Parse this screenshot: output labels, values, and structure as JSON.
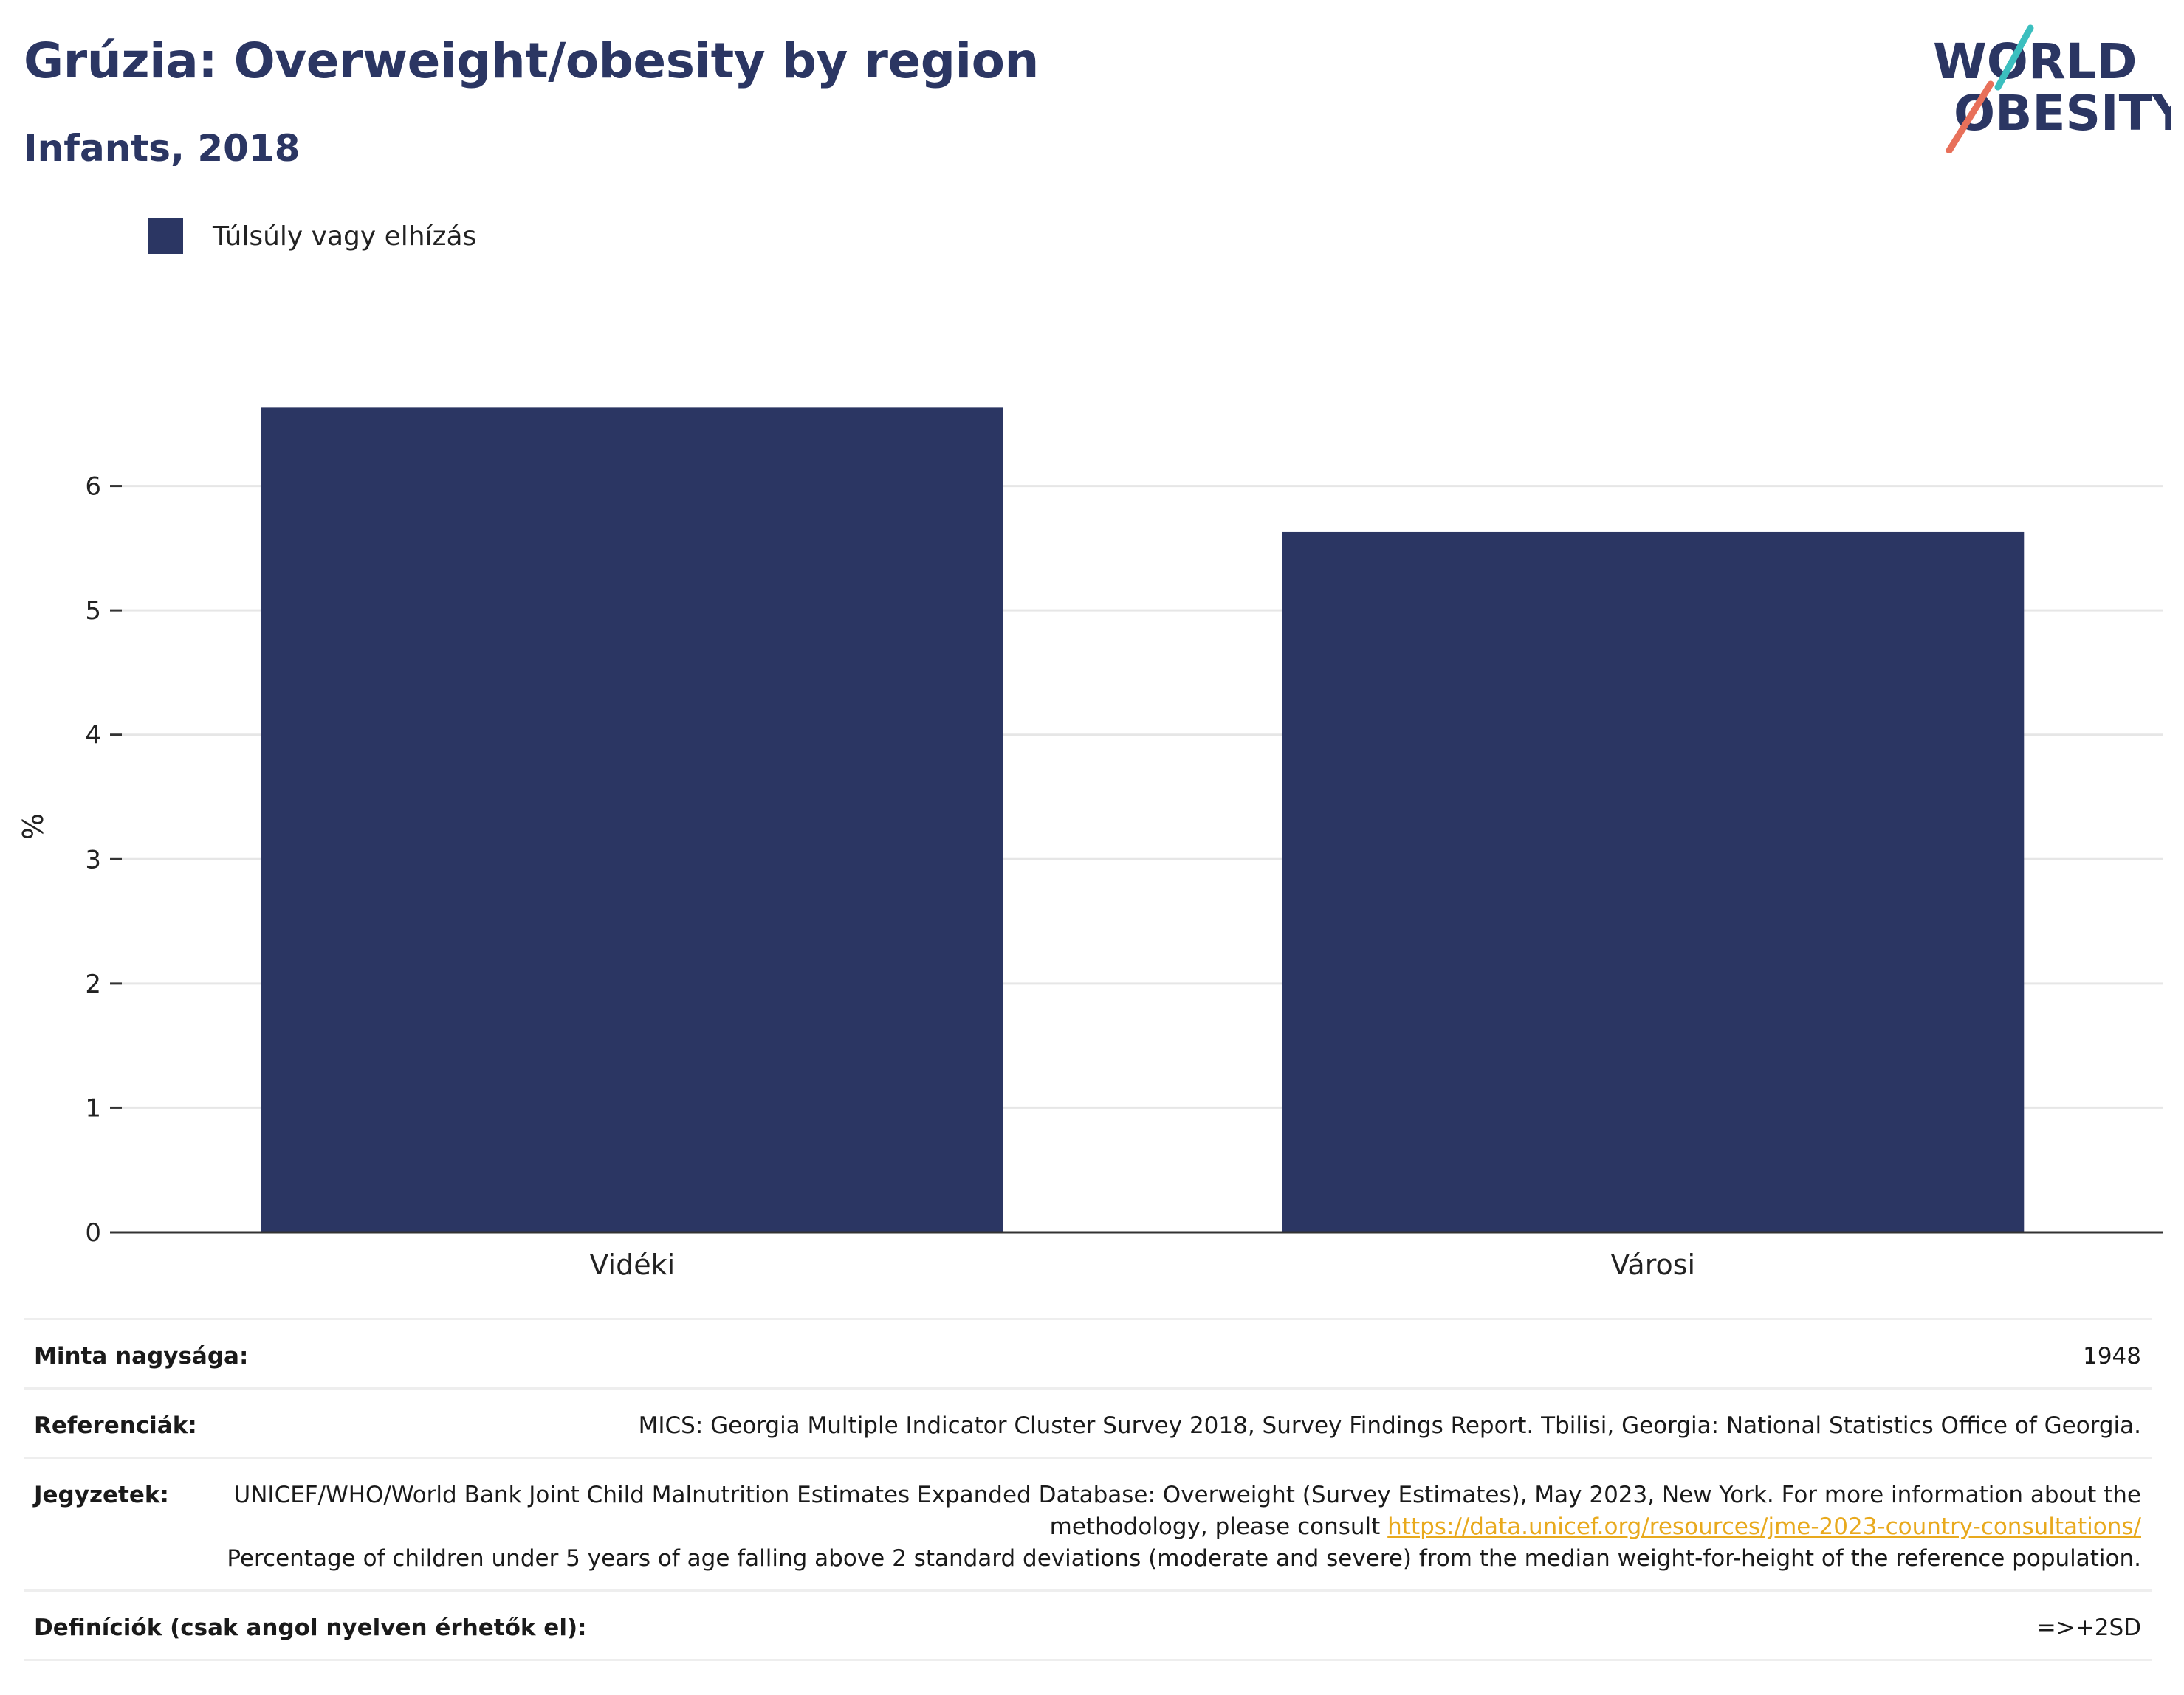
{
  "header": {
    "title": "Grúzia: Overweight/obesity by region",
    "subtitle": "Infants, 2018"
  },
  "logo": {
    "line1": "WORLD",
    "line2": "OBESITY",
    "name": "world-obesity-logo"
  },
  "legend": {
    "label": "Túlsúly vagy elhízás",
    "color": "#2b3663"
  },
  "chart_data": {
    "type": "bar",
    "categories": [
      "Vidéki",
      "Városi"
    ],
    "series": [
      {
        "name": "Túlsúly vagy elhízás",
        "values": [
          6.63,
          5.63
        ],
        "color": "#2b3663"
      }
    ],
    "ylabel": "%",
    "ylim": [
      0,
      7
    ],
    "yticks": [
      0,
      1,
      2,
      3,
      4,
      5,
      6
    ],
    "grid": true,
    "legend_position": "top-left"
  },
  "meta": {
    "sample_label": "Minta nagysága:",
    "sample_value": "1948",
    "refs_label": "Referenciák:",
    "refs_value": "MICS: Georgia Multiple Indicator Cluster Survey 2018, Survey Findings Report. Tbilisi, Georgia: National Statistics Office of Georgia.",
    "notes_label": "Jegyzetek:",
    "notes_text1": "UNICEF/WHO/World Bank Joint Child Malnutrition Estimates Expanded Database: Overweight (Survey Estimates), May 2023, New York. For more information about the methodology, please consult ",
    "notes_link": "https://data.unicef.org/resources/jme-2023-country-consultations/",
    "notes_text2": "Percentage of children under 5 years of age falling above 2 standard deviations (moderate and severe) from the median weight-for-height of the reference population.",
    "defs_label": "Definíciók (csak angol nyelven érhetők el):",
    "defs_value": "=>+2SD"
  }
}
